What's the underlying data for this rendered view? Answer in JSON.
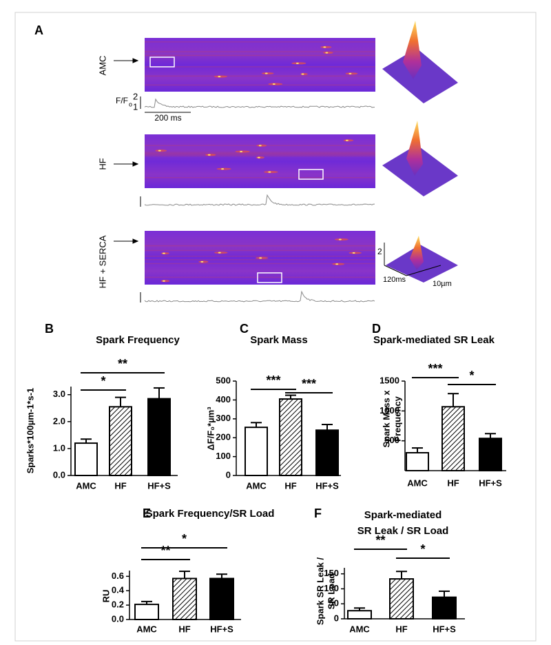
{
  "panel_a": {
    "label": "A",
    "rows": [
      {
        "name": "AMC"
      },
      {
        "name": "HF"
      },
      {
        "name": "HF + SERCA"
      }
    ],
    "trace_scale": {
      "ratio": "F/F",
      "ratio_sub": "o",
      "top": "2",
      "bottom": "1",
      "time": "200 ms"
    },
    "surface_scale": {
      "z": "2",
      "time": "120ms",
      "space": "10µm"
    }
  },
  "chart_data": [
    {
      "type": "bar",
      "panel": "B",
      "title": [
        "Spark Frequency"
      ],
      "ylabel": [
        "Sparks*100µm-1*s-1"
      ],
      "categories": [
        "AMC",
        "HF",
        "HF+S"
      ],
      "values": [
        1.2,
        2.55,
        2.85
      ],
      "errors": [
        0.15,
        0.35,
        0.4
      ],
      "fills": [
        "#ffffff",
        "hatch",
        "#000000"
      ],
      "ylim": [
        0,
        3.3
      ],
      "yticks": [
        {
          "value": 0,
          "label": "0.0"
        },
        {
          "value": 1,
          "label": "1.0"
        },
        {
          "value": 2,
          "label": "2.0"
        },
        {
          "value": 3,
          "label": "3.0"
        }
      ],
      "significance": [
        {
          "label": "*",
          "pair": [
            "AMC",
            "HF"
          ]
        },
        {
          "label": "**",
          "pair": [
            "AMC",
            "HF+S"
          ]
        }
      ]
    },
    {
      "type": "bar",
      "panel": "C",
      "title": [
        "Spark Mass"
      ],
      "ylabel": [
        "ΔF/F₀*µm³"
      ],
      "categories": [
        "AMC",
        "HF",
        "HF+S"
      ],
      "values": [
        255,
        405,
        240
      ],
      "errors": [
        25,
        20,
        30
      ],
      "fills": [
        "#ffffff",
        "hatch",
        "#000000"
      ],
      "ylim": [
        0,
        500
      ],
      "yticks": [
        0,
        100,
        200,
        300,
        400,
        500
      ],
      "significance": [
        {
          "label": "***",
          "pair": [
            "AMC",
            "HF"
          ]
        },
        {
          "label": "***",
          "pair": [
            "HF",
            "HF+S"
          ]
        }
      ]
    },
    {
      "type": "bar",
      "panel": "D",
      "title": [
        "Spark-mediated SR Leak"
      ],
      "ylabel": [
        "Spark Mass x",
        "Frequency"
      ],
      "categories": [
        "AMC",
        "HF",
        "HF+S"
      ],
      "values": [
        300,
        1070,
        540
      ],
      "errors": [
        80,
        220,
        80
      ],
      "fills": [
        "#ffffff",
        "hatch",
        "#000000"
      ],
      "ylim": [
        0,
        1500
      ],
      "yticks": [
        500,
        1000,
        1500
      ],
      "significance": [
        {
          "label": "***",
          "pair": [
            "AMC",
            "HF"
          ]
        },
        {
          "label": "*",
          "pair": [
            "HF",
            "HF+S"
          ]
        }
      ]
    },
    {
      "type": "bar",
      "panel": "E",
      "title": [
        "Spark Frequency/SR Load"
      ],
      "ylabel": [
        "RU"
      ],
      "categories": [
        "AMC",
        "HF",
        "HF+S"
      ],
      "values": [
        0.21,
        0.57,
        0.57
      ],
      "errors": [
        0.04,
        0.1,
        0.06
      ],
      "fills": [
        "#ffffff",
        "hatch",
        "#000000"
      ],
      "ylim": [
        0,
        0.68
      ],
      "yticks": [
        {
          "value": 0,
          "label": "0.0"
        },
        {
          "value": 0.2,
          "label": "0.2"
        },
        {
          "value": 0.4,
          "label": "0.4"
        },
        {
          "value": 0.6,
          "label": "0.6"
        }
      ],
      "significance": [
        {
          "label": "*",
          "pair": [
            "AMC",
            "HF+S"
          ]
        },
        {
          "label": "**",
          "pair": [
            "AMC",
            "HF"
          ]
        }
      ]
    },
    {
      "type": "bar",
      "panel": "F",
      "title": [
        "Spark-mediated",
        "SR Leak / SR Load"
      ],
      "ylabel": [
        "Spark SR Leak /",
        "SR Load"
      ],
      "categories": [
        "AMC",
        "HF",
        "HF+S"
      ],
      "values": [
        27,
        133,
        72
      ],
      "errors": [
        9,
        25,
        20
      ],
      "fills": [
        "#ffffff",
        "hatch",
        "#000000"
      ],
      "ylim": [
        0,
        170
      ],
      "yticks": [
        0,
        50,
        100,
        150
      ],
      "significance": [
        {
          "label": "**",
          "pair": [
            "AMC",
            "HF"
          ]
        },
        {
          "label": "*",
          "pair": [
            "HF",
            "HF+S"
          ]
        }
      ]
    }
  ]
}
